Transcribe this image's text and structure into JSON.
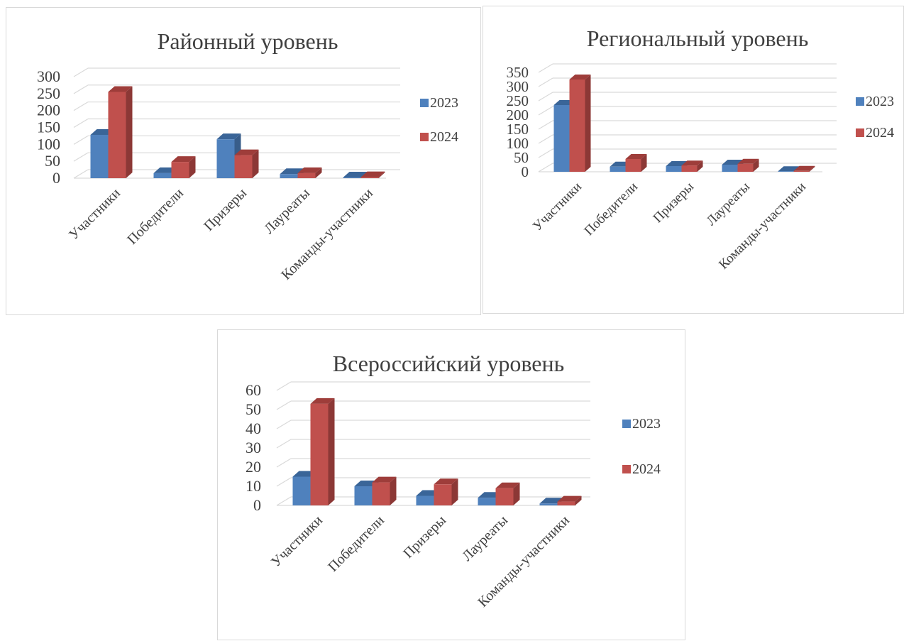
{
  "colors": {
    "series_2023": "#4f81bd",
    "series_2023_dark": "#385d8a",
    "series_2023_light": "#3a6598",
    "series_2024": "#c0504d",
    "series_2024_dark": "#8c3836",
    "series_2024_light": "#9e3d3a",
    "gridline": "#d9d9d9",
    "text": "#404040"
  },
  "chart_data": [
    {
      "type": "bar",
      "title": "Районный уровень",
      "categories": [
        "Участники",
        "Победители",
        "Призеры",
        "Лауреаты",
        "Команды-участники"
      ],
      "series": [
        {
          "name": "2023",
          "values": [
            128,
            15,
            115,
            12,
            2
          ]
        },
        {
          "name": "2024",
          "values": [
            255,
            48,
            68,
            15,
            3
          ]
        }
      ],
      "ylim": [
        0,
        300
      ],
      "yticks": [
        0,
        50,
        100,
        150,
        200,
        250,
        300
      ],
      "grid": true,
      "legend": "right",
      "style": "3d-clustered-column"
    },
    {
      "type": "bar",
      "title": "Региональный уровень",
      "categories": [
        "Участники",
        "Победители",
        "Призеры",
        "Лауреаты",
        "Команды-участники"
      ],
      "series": [
        {
          "name": "2023",
          "values": [
            235,
            18,
            20,
            25,
            2
          ]
        },
        {
          "name": "2024",
          "values": [
            325,
            45,
            22,
            28,
            3
          ]
        }
      ],
      "ylim": [
        0,
        350
      ],
      "yticks": [
        0,
        50,
        100,
        150,
        200,
        250,
        300,
        350
      ],
      "grid": true,
      "legend": "right",
      "style": "3d-clustered-column"
    },
    {
      "type": "bar",
      "title": "Всероссийский уровень",
      "categories": [
        "Участники",
        "Победители",
        "Призеры",
        "Лауреаты",
        "Команды-участники"
      ],
      "series": [
        {
          "name": "2023",
          "values": [
            15,
            10,
            5,
            4,
            1
          ]
        },
        {
          "name": "2024",
          "values": [
            53,
            12,
            11,
            9,
            2
          ]
        }
      ],
      "ylim": [
        0,
        60
      ],
      "yticks": [
        0,
        10,
        20,
        30,
        40,
        50,
        60
      ],
      "grid": true,
      "legend": "right",
      "style": "3d-clustered-column"
    }
  ]
}
